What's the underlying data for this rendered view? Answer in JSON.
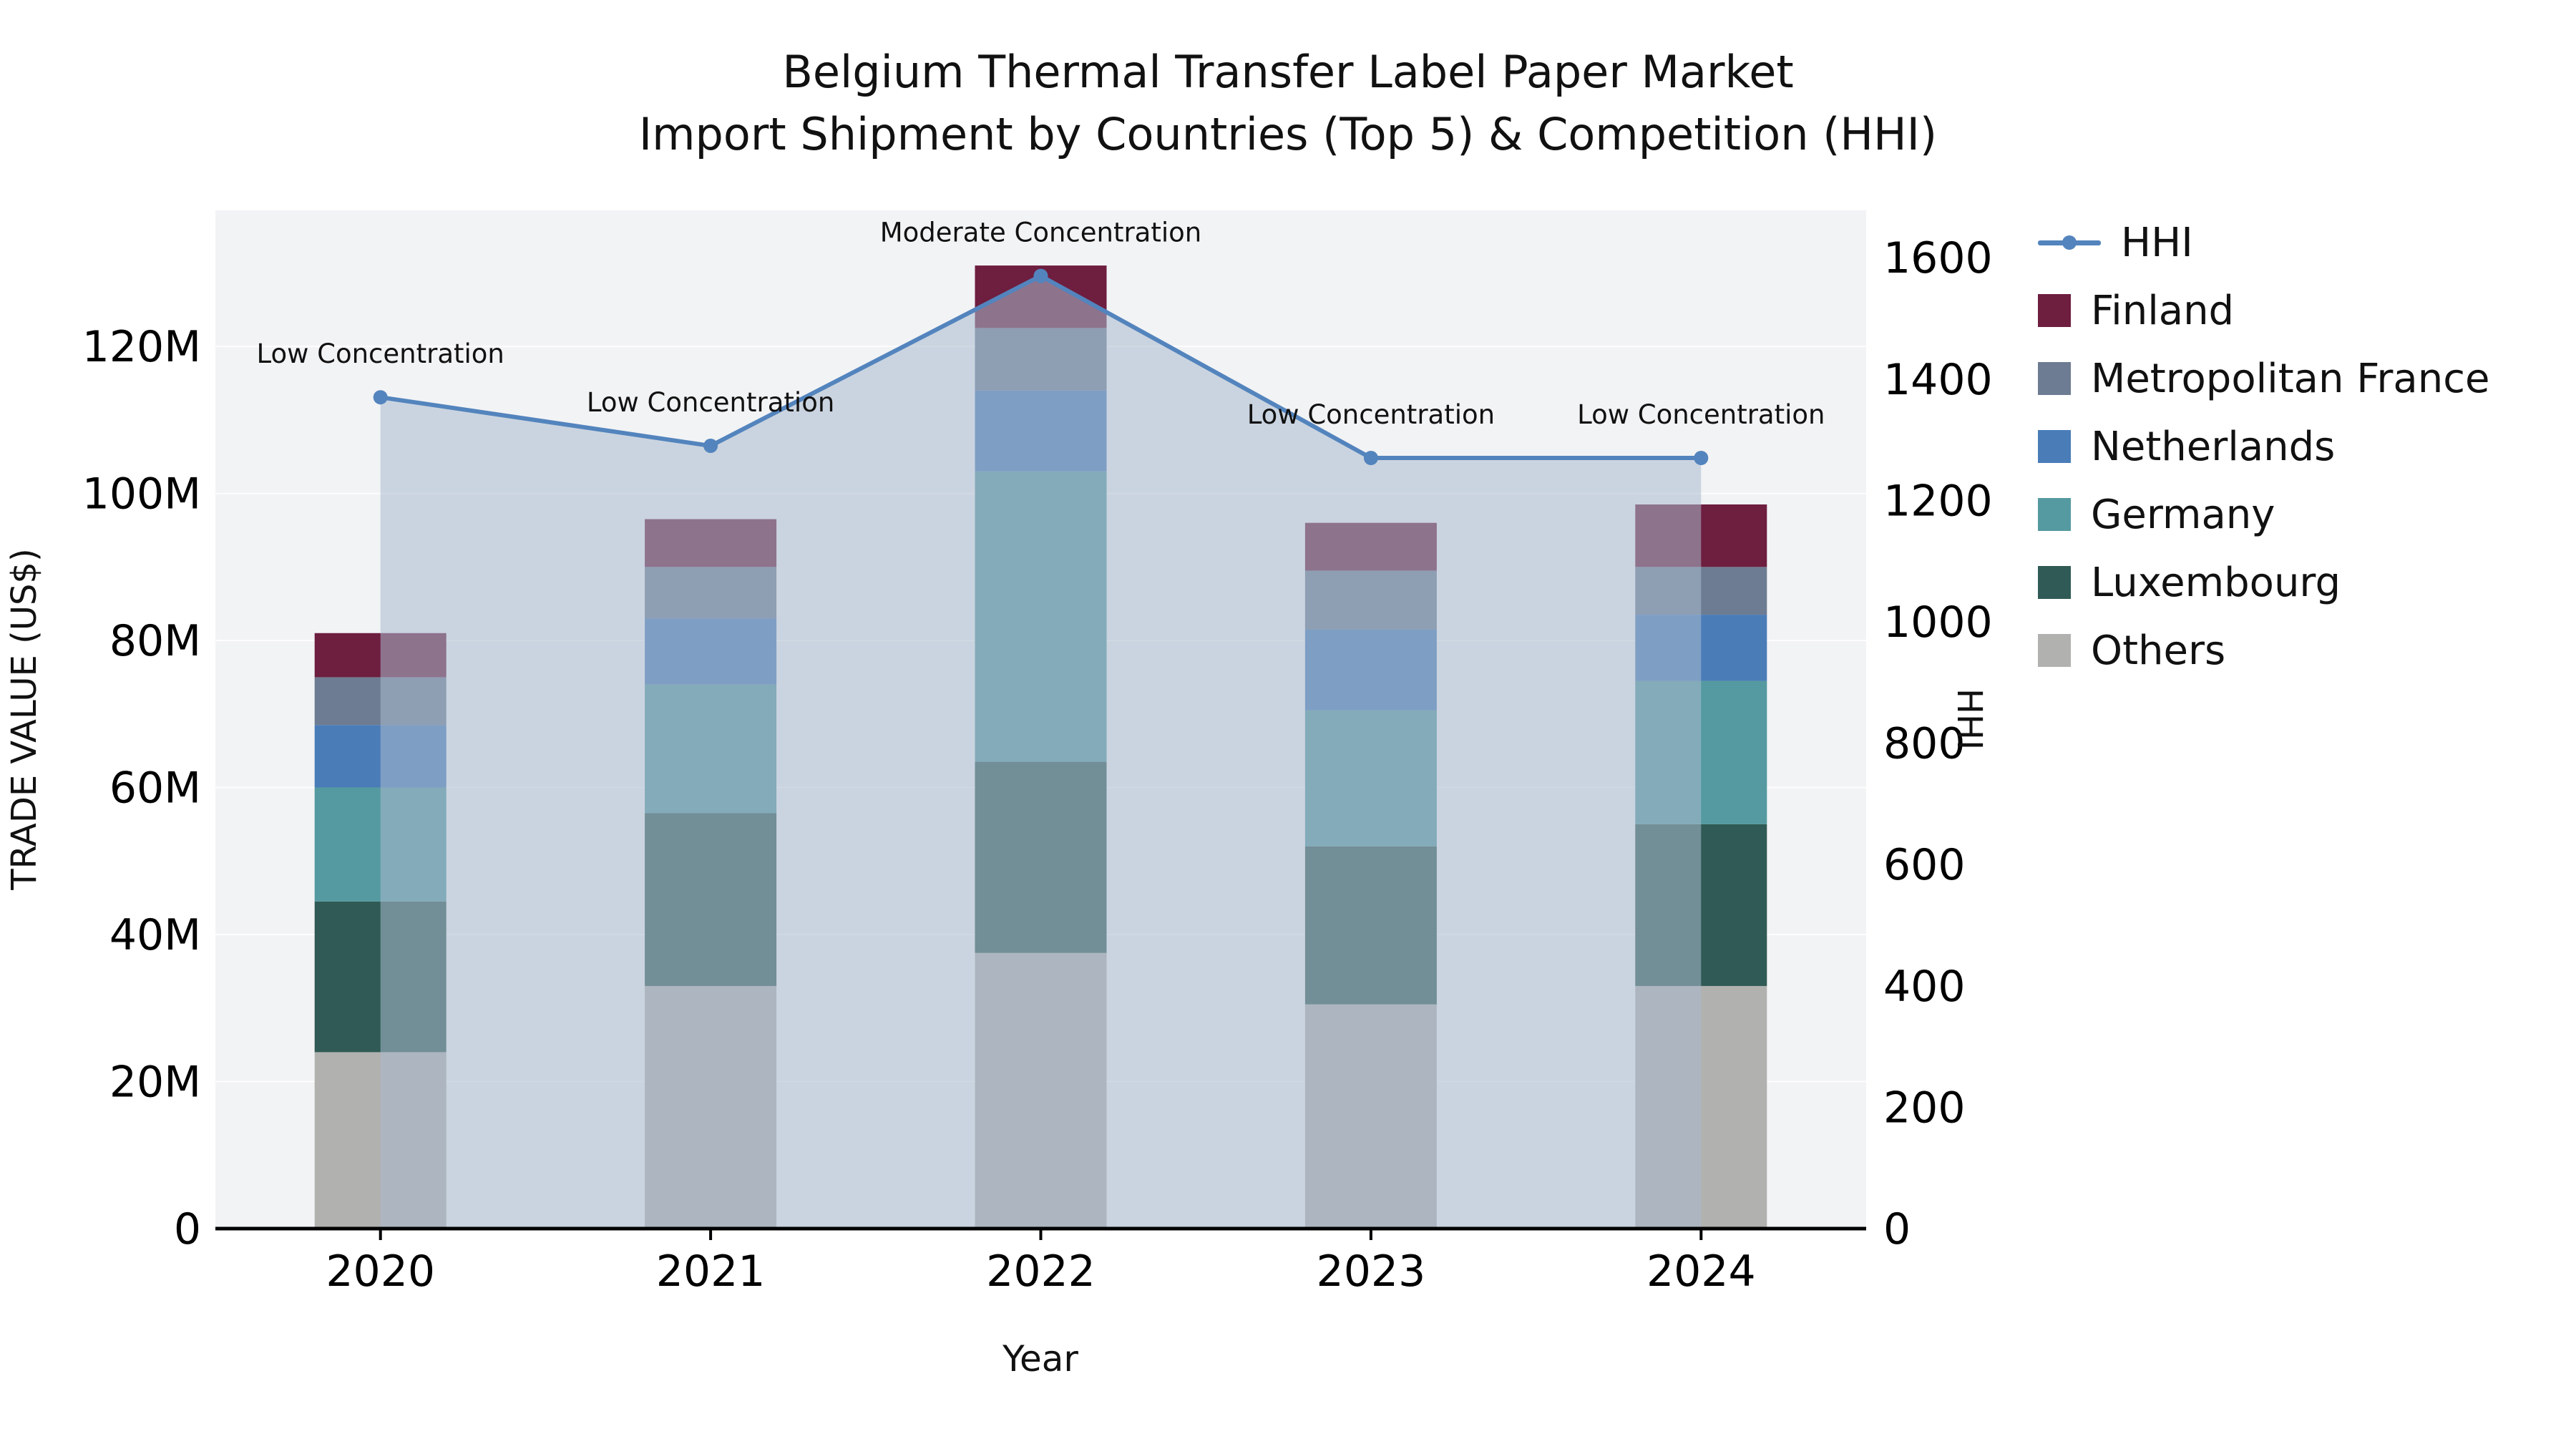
{
  "chart_data": {
    "type": "bar",
    "title": "Belgium Thermal Transfer Label Paper Market",
    "subtitle": "Import Shipment by Countries (Top 5) & Competition (HHI)",
    "xlabel": "Year",
    "ylabel_left": "TRADE VALUE (US$)",
    "ylabel_right": "HHI",
    "unit": "USD millions",
    "categories": [
      "2020",
      "2021",
      "2022",
      "2023",
      "2024"
    ],
    "stack_order_bottom_to_top": [
      "Others",
      "Luxembourg",
      "Germany",
      "Netherlands",
      "Metropolitan France",
      "Finland"
    ],
    "series": [
      {
        "name": "Others",
        "color": "#b1b1b0",
        "values_musd": [
          24,
          33,
          37.5,
          30.5,
          33
        ]
      },
      {
        "name": "Luxembourg",
        "color": "#305a55",
        "values_musd": [
          20.5,
          23.5,
          26,
          21.5,
          22
        ]
      },
      {
        "name": "Germany",
        "color": "#549aa0",
        "values_musd": [
          15.5,
          17.5,
          39.5,
          18.5,
          19.5
        ]
      },
      {
        "name": "Netherlands",
        "color": "#4a7cb8",
        "values_musd": [
          8.5,
          9,
          11,
          11,
          9
        ]
      },
      {
        "name": "Metropolitan France",
        "color": "#6d7c92",
        "values_musd": [
          6.5,
          7,
          8.5,
          8,
          6.5
        ]
      },
      {
        "name": "Finland",
        "color": "#6e1e3f",
        "values_musd": [
          6,
          6.5,
          8.5,
          6.5,
          8.5
        ]
      }
    ],
    "hhi_line": {
      "name": "HHI",
      "color": "#5384bd",
      "area_fill": "rgba(170,185,205,0.55)",
      "values": [
        1370,
        1290,
        1570,
        1270,
        1270
      ]
    },
    "annotations": [
      "Low Concentration",
      "Low Concentration",
      "Moderate Concentration",
      "Low Concentration",
      "Low Concentration"
    ],
    "left_axis": {
      "ylim_musd": [
        0,
        138.5
      ],
      "ticks_musd": [
        0,
        20,
        40,
        60,
        80,
        100,
        120
      ],
      "tick_labels": [
        "0",
        "20M",
        "40M",
        "60M",
        "80M",
        "100M",
        "120M"
      ]
    },
    "right_axis": {
      "ylim": [
        0,
        1678
      ],
      "ticks": [
        0,
        200,
        400,
        600,
        800,
        1000,
        1200,
        1400,
        1600
      ],
      "tick_labels": [
        "0",
        "200",
        "400",
        "600",
        "800",
        "1000",
        "1200",
        "1400",
        "1600"
      ]
    },
    "legend": [
      {
        "label": "HHI",
        "type": "line",
        "color": "#5384bd"
      },
      {
        "label": "Finland",
        "type": "square",
        "color": "#6e1e3f"
      },
      {
        "label": "Metropolitan France",
        "type": "square",
        "color": "#6d7c92"
      },
      {
        "label": "Netherlands",
        "type": "square",
        "color": "#4a7cb8"
      },
      {
        "label": "Germany",
        "type": "square",
        "color": "#549aa0"
      },
      {
        "label": "Luxembourg",
        "type": "square",
        "color": "#305a55"
      },
      {
        "label": "Others",
        "type": "square",
        "color": "#b1b1b0"
      }
    ],
    "colors": {
      "plot_bg": "#f2f3f5",
      "grid": "#ffffff",
      "axis": "#000000"
    }
  }
}
